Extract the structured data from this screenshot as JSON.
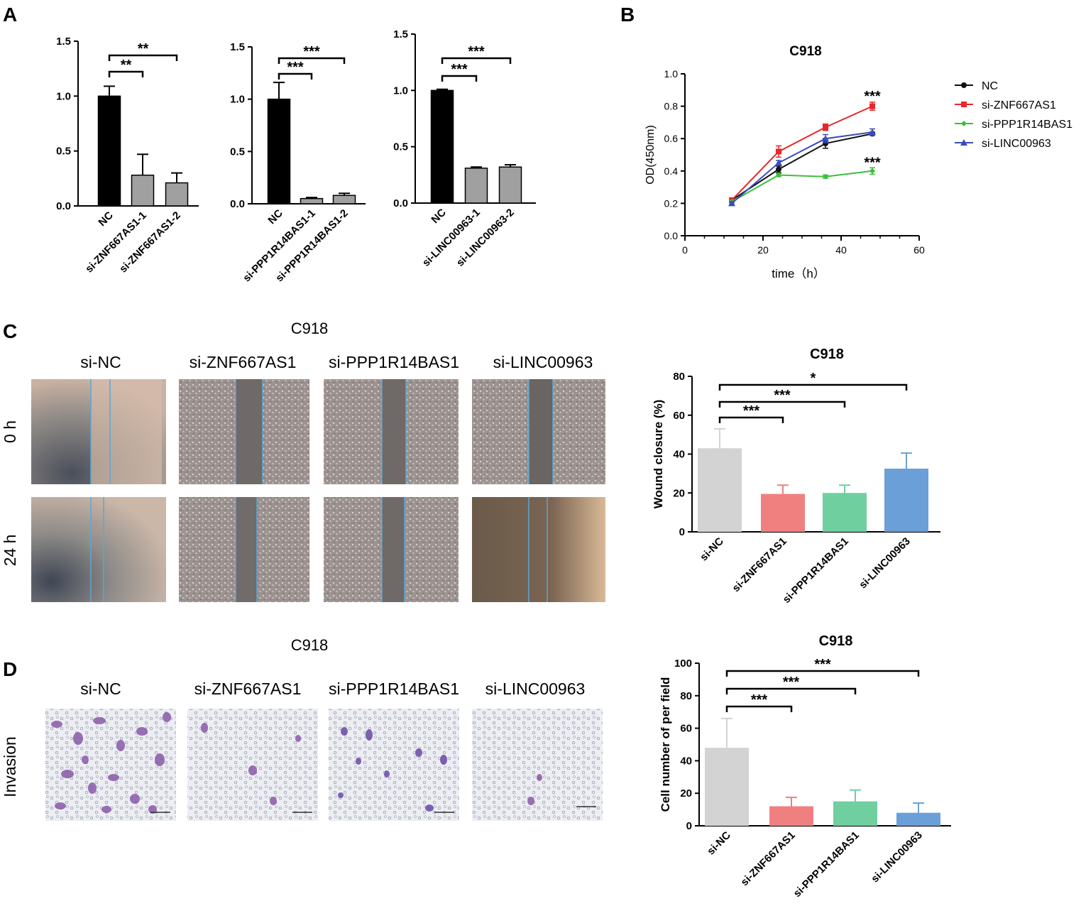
{
  "panel_labels": {
    "a": "A",
    "b": "B",
    "c": "C",
    "d": "D"
  },
  "panel_c": {
    "title": "C918",
    "column_labels": [
      "si-NC",
      "si-ZNF667AS1",
      "si-PPP1R14BAS1",
      "si-LINC00963"
    ],
    "row_labels": [
      "0 h",
      "24 h"
    ]
  },
  "panel_d": {
    "title": "C918",
    "column_labels": [
      "si-NC",
      "si-ZNF667AS1",
      "si-PPP1R14BAS1",
      "si-LINC00963"
    ],
    "row_labels": [
      "Invasion"
    ]
  },
  "chart_data": [
    {
      "id": "A1",
      "type": "bar",
      "categories": [
        "NC",
        "si-ZNF667AS1-1",
        "si-ZNF667AS1-2"
      ],
      "values": [
        1.0,
        0.28,
        0.21
      ],
      "errors": [
        0.09,
        0.19,
        0.09
      ],
      "colors": [
        "#000000",
        "#a0a0a0",
        "#a0a0a0"
      ],
      "ylim": [
        0,
        1.5
      ],
      "yticks": [
        "0.0",
        "0.5",
        "1.0",
        "1.5"
      ],
      "comparisons": [
        {
          "from": 0,
          "to": 1,
          "label": "**"
        },
        {
          "from": 0,
          "to": 2,
          "label": "**"
        }
      ]
    },
    {
      "id": "A2",
      "type": "bar",
      "categories": [
        "NC",
        "si-PPP1R14BAS1-1",
        "si-PPP1R14BAS1-2"
      ],
      "values": [
        1.0,
        0.05,
        0.08
      ],
      "errors": [
        0.16,
        0.01,
        0.02
      ],
      "colors": [
        "#000000",
        "#a0a0a0",
        "#a0a0a0"
      ],
      "ylim": [
        0,
        1.5
      ],
      "yticks": [
        "0.0",
        "0.5",
        "1.0",
        "1.5"
      ],
      "comparisons": [
        {
          "from": 0,
          "to": 1,
          "label": "***"
        },
        {
          "from": 0,
          "to": 2,
          "label": "***"
        }
      ]
    },
    {
      "id": "A3",
      "type": "bar",
      "categories": [
        "NC",
        "si-LINC00963-1",
        "si-LINC00963-2"
      ],
      "values": [
        1.0,
        0.31,
        0.32
      ],
      "errors": [
        0.01,
        0.01,
        0.02
      ],
      "colors": [
        "#000000",
        "#a0a0a0",
        "#a0a0a0"
      ],
      "ylim": [
        0,
        1.5
      ],
      "yticks": [
        "0.0",
        "0.5",
        "1.0",
        "1.5"
      ],
      "comparisons": [
        {
          "from": 0,
          "to": 1,
          "label": "***"
        },
        {
          "from": 0,
          "to": 2,
          "label": "***"
        }
      ]
    },
    {
      "id": "B",
      "type": "line",
      "title": "C918",
      "xlabel": "time（h）",
      "ylabel": "OD(450nm)",
      "xlim": [
        0,
        60
      ],
      "ylim": [
        0,
        1.0
      ],
      "xticks": [
        "0",
        "20",
        "40",
        "60"
      ],
      "yticks": [
        "0.0",
        "0.2",
        "0.4",
        "0.6",
        "0.8",
        "1.0"
      ],
      "x": [
        12,
        24,
        36,
        48
      ],
      "legend_position": "right",
      "series": [
        {
          "name": "NC",
          "color": "#111111",
          "marker": "circle",
          "values": [
            0.22,
            0.41,
            0.57,
            0.63
          ],
          "errors": [
            0.01,
            0.02,
            0.03,
            0.01
          ]
        },
        {
          "name": "si-ZNF667AS1",
          "color": "#e8272a",
          "marker": "square",
          "values": [
            0.22,
            0.52,
            0.67,
            0.8
          ],
          "errors": [
            0.01,
            0.035,
            0.02,
            0.025
          ]
        },
        {
          "name": "si-PPP1R14BAS1",
          "color": "#3cbf3c",
          "marker": "diamond",
          "values": [
            0.21,
            0.375,
            0.365,
            0.4
          ],
          "errors": [
            0.01,
            0.01,
            0.01,
            0.02
          ]
        },
        {
          "name": "si-LINC00963",
          "color": "#3b4bbb",
          "marker": "triangle",
          "values": [
            0.2,
            0.45,
            0.6,
            0.64
          ],
          "errors": [
            0.01,
            0.015,
            0.025,
            0.02
          ]
        }
      ],
      "annotations": [
        {
          "x": 48,
          "y": 0.86,
          "label": "***"
        },
        {
          "x": 48,
          "y": 0.45,
          "label": "***"
        }
      ]
    },
    {
      "id": "C",
      "type": "bar",
      "title": "C918",
      "ylabel": "Wound closure (%)",
      "categories": [
        "si-NC",
        "si-ZNF667AS1",
        "si-PPP1R14BAS1",
        "si-LINC00963"
      ],
      "values": [
        43,
        19.5,
        20,
        32.5
      ],
      "errors": [
        10,
        4.5,
        4,
        8
      ],
      "colors": [
        "#d3d3d3",
        "#f08080",
        "#6fcf9f",
        "#6a9fd8"
      ],
      "ylim": [
        0,
        80
      ],
      "yticks": [
        "0",
        "20",
        "40",
        "60",
        "80"
      ],
      "comparisons": [
        {
          "from": 0,
          "to": 1,
          "label": "***"
        },
        {
          "from": 0,
          "to": 2,
          "label": "***"
        },
        {
          "from": 0,
          "to": 3,
          "label": "*"
        }
      ]
    },
    {
      "id": "D",
      "type": "bar",
      "title": "C918",
      "ylabel": "Cell number of per field",
      "categories": [
        "si-NC",
        "si-ZNF667AS1",
        "si-PPP1R14BAS1",
        "si-LINC00963"
      ],
      "values": [
        48,
        12,
        15,
        8
      ],
      "errors": [
        18,
        5.5,
        7,
        6
      ],
      "colors": [
        "#d3d3d3",
        "#f08080",
        "#6fcf9f",
        "#6a9fd8"
      ],
      "ylim": [
        0,
        100
      ],
      "yticks": [
        "0",
        "20",
        "40",
        "60",
        "80",
        "100"
      ],
      "comparisons": [
        {
          "from": 0,
          "to": 1,
          "label": "***"
        },
        {
          "from": 0,
          "to": 2,
          "label": "***"
        },
        {
          "from": 0,
          "to": 3,
          "label": "***"
        }
      ]
    }
  ]
}
